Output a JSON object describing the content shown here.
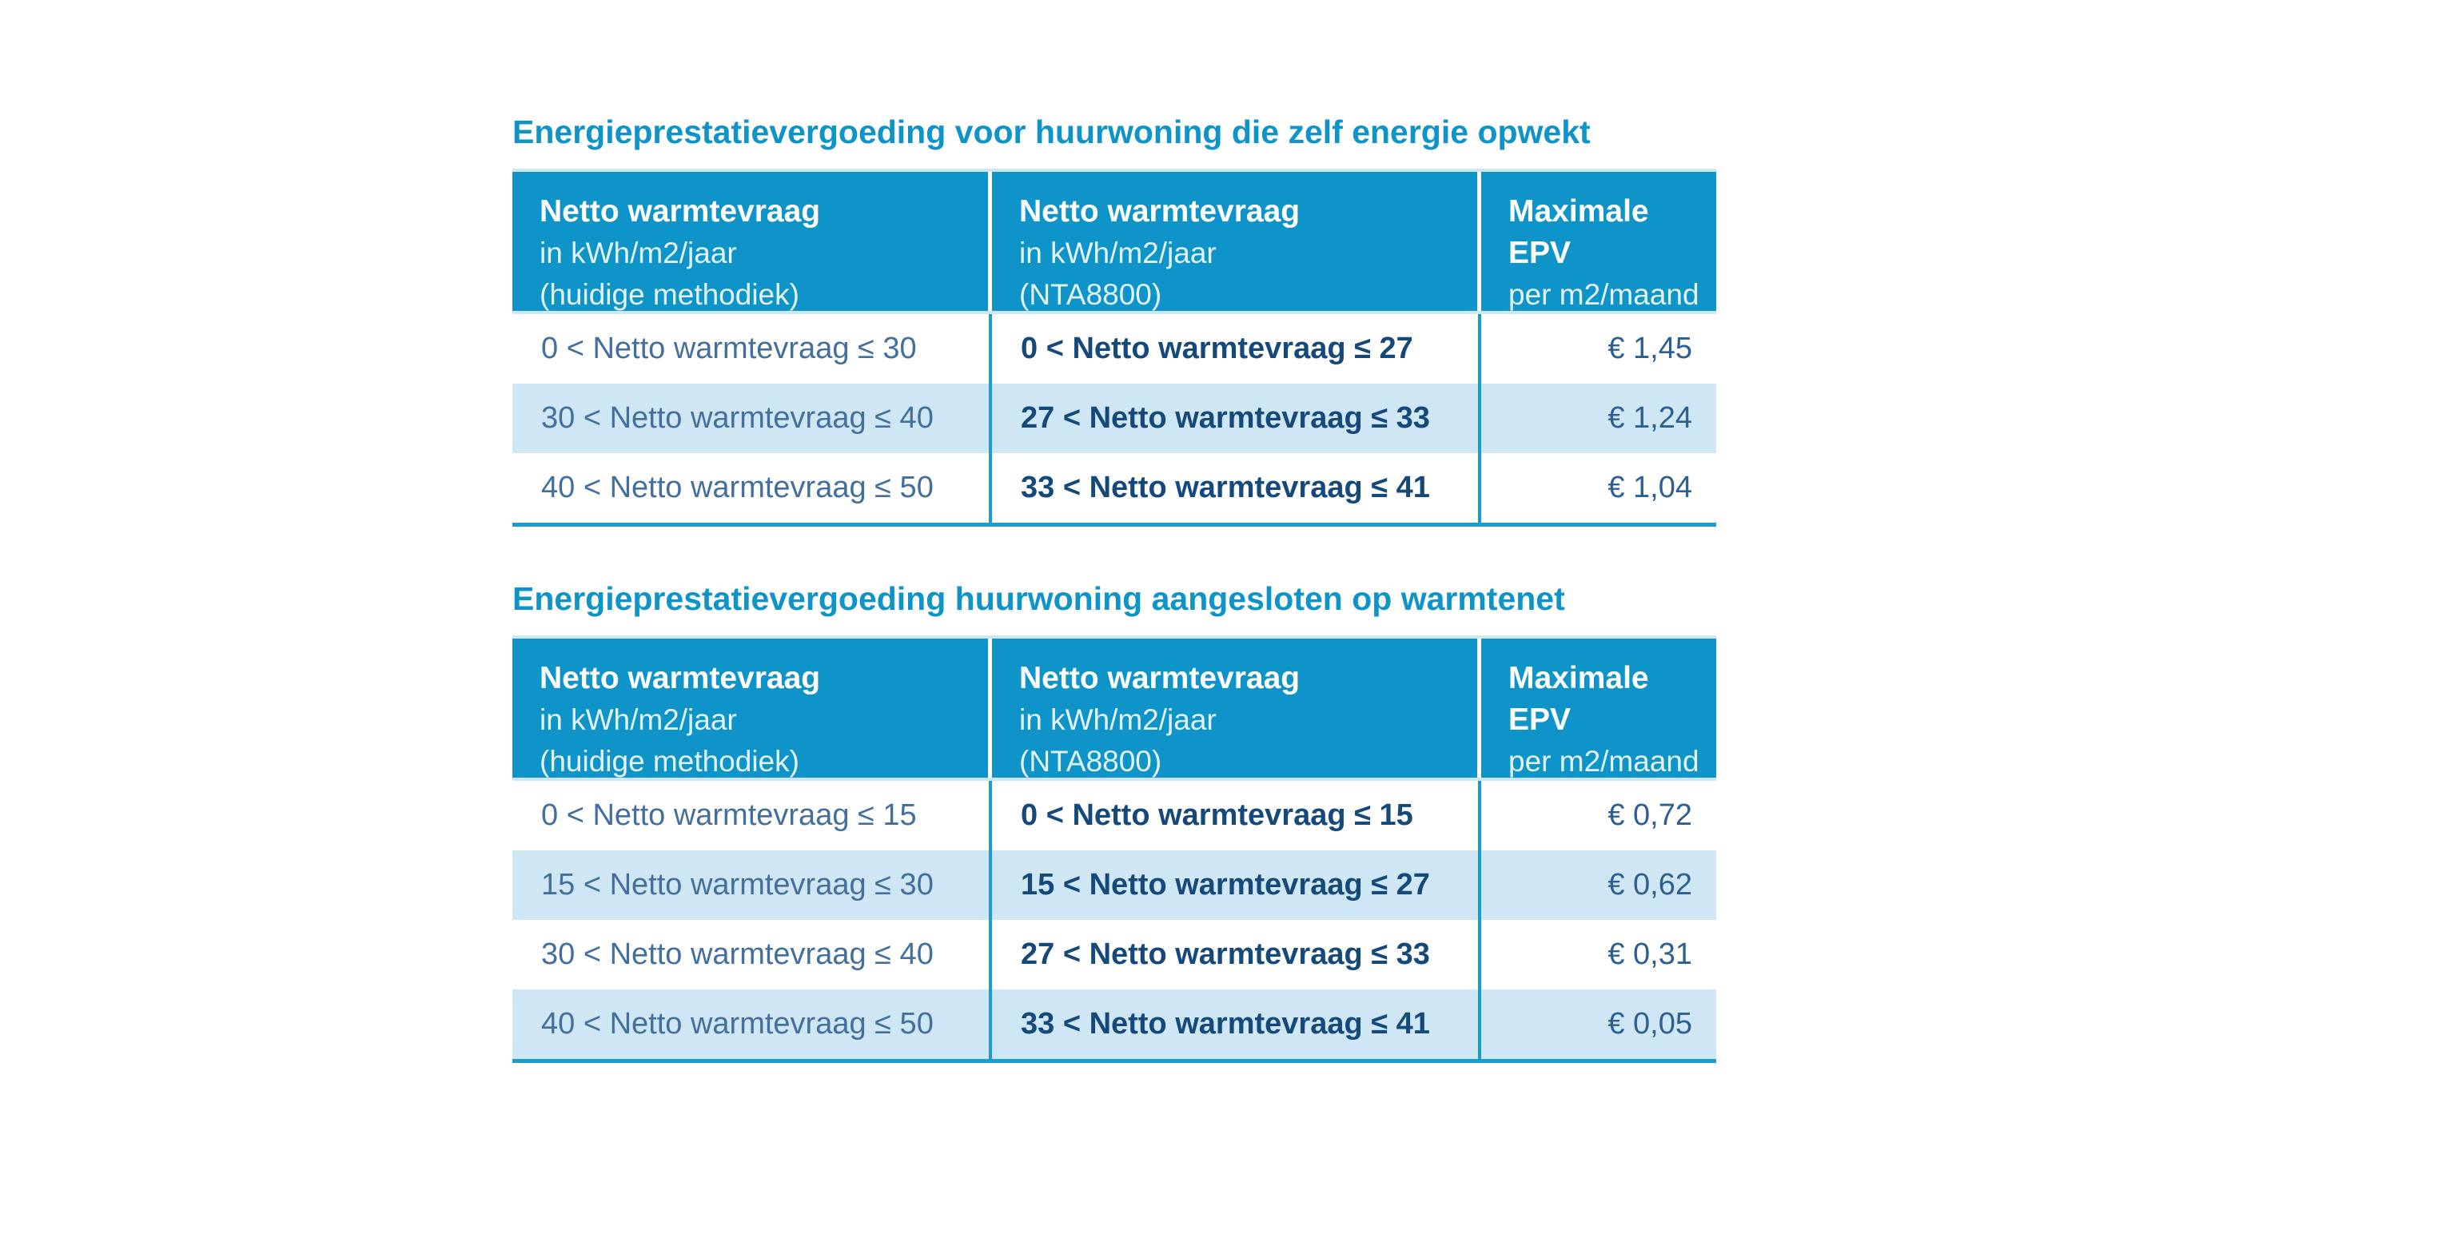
{
  "colors": {
    "header_bg": "#0e94c8",
    "title_text": "#0e94c8",
    "row_alt_bg": "#cfe7f4",
    "divider_blue": "#1b9ccf",
    "text_bold_navy": "#16497b",
    "text_light_navy": "#426f9e",
    "header_text": "#ffffff"
  },
  "tables": [
    {
      "title": "Energieprestatievergoeding voor huurwoning die zelf energie opwekt",
      "headers": [
        {
          "line1": "Netto warmtevraag",
          "line2": "in kWh/m2/jaar",
          "line3": "(huidige methodiek)"
        },
        {
          "line1": "Netto warmtevraag",
          "line2": "in kWh/m2/jaar",
          "line3": "(NTA8800)"
        },
        {
          "line1": "Maximale EPV",
          "line2": "per m2/maand"
        }
      ],
      "rows": [
        {
          "current": "0 < Netto warmtevraag ≤ 30",
          "nta": "0 < Netto warmtevraag ≤ 27",
          "epv": "€ 1,45"
        },
        {
          "current": "30 < Netto warmtevraag ≤ 40",
          "nta": "27 < Netto warmtevraag ≤ 33",
          "epv": "€ 1,24"
        },
        {
          "current": "40 < Netto warmtevraag ≤ 50",
          "nta": "33 < Netto warmtevraag ≤ 41",
          "epv": "€ 1,04"
        }
      ]
    },
    {
      "title": "Energieprestatievergoeding huurwoning aangesloten op warmtenet",
      "headers": [
        {
          "line1": "Netto warmtevraag",
          "line2": "in kWh/m2/jaar",
          "line3": "(huidige methodiek)"
        },
        {
          "line1": "Netto warmtevraag",
          "line2": "in kWh/m2/jaar",
          "line3": "(NTA8800)"
        },
        {
          "line1": "Maximale EPV",
          "line2": "per m2/maand"
        }
      ],
      "rows": [
        {
          "current": "0 < Netto warmtevraag ≤ 15",
          "nta": "0 < Netto warmtevraag ≤ 15",
          "epv": "€ 0,72"
        },
        {
          "current": "15 < Netto warmtevraag ≤ 30",
          "nta": "15 < Netto warmtevraag ≤ 27",
          "epv": "€ 0,62"
        },
        {
          "current": "30 < Netto warmtevraag ≤ 40",
          "nta": "27 < Netto warmtevraag ≤ 33",
          "epv": "€ 0,31"
        },
        {
          "current": "40 < Netto warmtevraag ≤ 50",
          "nta": "33 < Netto warmtevraag ≤ 41",
          "epv": "€ 0,05"
        }
      ]
    }
  ]
}
